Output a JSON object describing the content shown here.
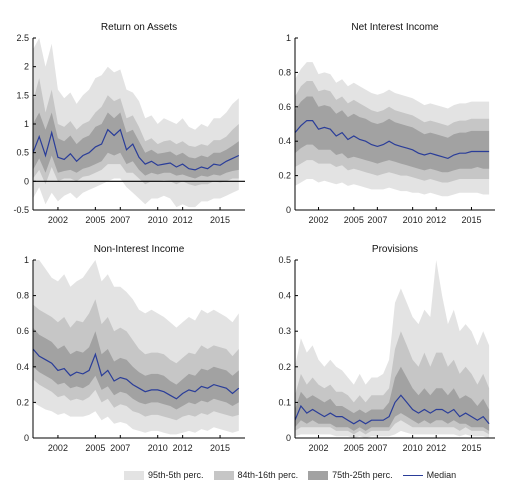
{
  "chart_data": [
    {
      "type": "area",
      "title": "Return on Assets",
      "ylim": [
        -0.5,
        2.5
      ],
      "yticks": [
        "-0.5",
        "0",
        "0.5",
        "1",
        "1.5",
        "2",
        "2.5"
      ],
      "xlim": [
        2000,
        2017
      ],
      "xticks": [
        "2002",
        "2005",
        "2007",
        "2010",
        "2012",
        "2015"
      ],
      "zero_line": true,
      "x": [
        2000.0,
        2000.5,
        2001.0,
        2001.5,
        2002.0,
        2002.5,
        2003.0,
        2003.5,
        2004.0,
        2004.5,
        2005.0,
        2005.5,
        2006.0,
        2006.5,
        2007.0,
        2007.5,
        2008.0,
        2008.5,
        2009.0,
        2009.5,
        2010.0,
        2010.5,
        2011.0,
        2011.5,
        2012.0,
        2012.5,
        2013.0,
        2013.5,
        2014.0,
        2014.5,
        2015.0,
        2015.5,
        2016.0,
        2016.5
      ],
      "median": [
        0.5,
        0.78,
        0.45,
        0.85,
        0.42,
        0.38,
        0.48,
        0.35,
        0.45,
        0.5,
        0.6,
        0.65,
        0.9,
        0.8,
        0.9,
        0.55,
        0.65,
        0.42,
        0.3,
        0.35,
        0.28,
        0.3,
        0.32,
        0.25,
        0.3,
        0.22,
        0.2,
        0.25,
        0.22,
        0.3,
        0.28,
        0.35,
        0.4,
        0.45
      ],
      "p25": [
        0.2,
        0.4,
        0.15,
        0.45,
        0.15,
        0.18,
        0.2,
        0.15,
        0.22,
        0.25,
        0.3,
        0.35,
        0.5,
        0.45,
        0.5,
        0.3,
        0.35,
        0.2,
        0.1,
        0.15,
        0.12,
        0.15,
        0.15,
        0.1,
        0.12,
        0.08,
        0.05,
        0.1,
        0.08,
        0.12,
        0.1,
        0.15,
        0.18,
        0.2
      ],
      "p75": [
        1.0,
        1.2,
        0.9,
        1.2,
        0.75,
        0.7,
        0.8,
        0.65,
        0.75,
        0.8,
        0.95,
        1.0,
        1.2,
        1.1,
        1.2,
        0.85,
        0.9,
        0.7,
        0.5,
        0.55,
        0.48,
        0.5,
        0.52,
        0.45,
        0.5,
        0.42,
        0.4,
        0.45,
        0.42,
        0.5,
        0.5,
        0.55,
        0.62,
        0.7
      ],
      "p16": [
        0.05,
        0.2,
        -0.05,
        0.25,
        0.0,
        0.05,
        0.05,
        0.0,
        0.08,
        0.1,
        0.15,
        0.2,
        0.3,
        0.3,
        0.3,
        0.15,
        0.15,
        0.05,
        -0.05,
        0.0,
        0.0,
        0.02,
        0.0,
        -0.05,
        0.0,
        -0.05,
        -0.08,
        -0.05,
        -0.05,
        0.0,
        -0.02,
        0.0,
        0.05,
        0.05
      ],
      "p84": [
        1.4,
        1.8,
        1.2,
        1.6,
        1.0,
        0.95,
        1.05,
        0.9,
        1.0,
        1.05,
        1.2,
        1.3,
        1.5,
        1.4,
        1.45,
        1.1,
        1.15,
        0.95,
        0.7,
        0.75,
        0.65,
        0.7,
        0.72,
        0.65,
        0.7,
        0.62,
        0.6,
        0.65,
        0.62,
        0.72,
        0.72,
        0.78,
        0.9,
        1.0
      ],
      "p5": [
        -0.3,
        -0.1,
        -0.4,
        -0.2,
        -0.35,
        -0.25,
        -0.2,
        -0.3,
        -0.2,
        -0.15,
        -0.1,
        -0.05,
        0.0,
        0.05,
        0.05,
        -0.1,
        -0.2,
        -0.3,
        -0.4,
        -0.3,
        -0.3,
        -0.25,
        -0.3,
        -0.45,
        -0.4,
        -0.45,
        -0.45,
        -0.35,
        -0.35,
        -0.3,
        -0.3,
        -0.25,
        -0.2,
        -0.15
      ],
      "p95": [
        2.3,
        2.5,
        2.0,
        2.4,
        1.6,
        1.45,
        1.55,
        1.35,
        1.5,
        1.6,
        1.8,
        1.85,
        2.0,
        1.9,
        1.95,
        1.6,
        1.55,
        1.4,
        1.1,
        1.15,
        1.0,
        1.1,
        1.05,
        1.0,
        1.1,
        0.95,
        0.9,
        1.0,
        0.95,
        1.1,
        1.1,
        1.2,
        1.35,
        1.45
      ]
    },
    {
      "type": "area",
      "title": "Net Interest Income",
      "ylim": [
        0,
        1
      ],
      "yticks": [
        "0",
        "0.2",
        "0.4",
        "0.6",
        "0.8",
        "1"
      ],
      "xlim": [
        2000,
        2017
      ],
      "xticks": [
        "2002",
        "2005",
        "2007",
        "2010",
        "2012",
        "2015"
      ],
      "zero_line": false,
      "x": [
        2000.0,
        2000.5,
        2001.0,
        2001.5,
        2002.0,
        2002.5,
        2003.0,
        2003.5,
        2004.0,
        2004.5,
        2005.0,
        2005.5,
        2006.0,
        2006.5,
        2007.0,
        2007.5,
        2008.0,
        2008.5,
        2009.0,
        2009.5,
        2010.0,
        2010.5,
        2011.0,
        2011.5,
        2012.0,
        2012.5,
        2013.0,
        2013.5,
        2014.0,
        2014.5,
        2015.0,
        2015.5,
        2016.0,
        2016.5
      ],
      "median": [
        0.45,
        0.49,
        0.52,
        0.52,
        0.47,
        0.48,
        0.47,
        0.43,
        0.45,
        0.41,
        0.43,
        0.41,
        0.4,
        0.38,
        0.37,
        0.38,
        0.4,
        0.38,
        0.37,
        0.36,
        0.35,
        0.33,
        0.32,
        0.33,
        0.32,
        0.31,
        0.3,
        0.32,
        0.33,
        0.33,
        0.34,
        0.34,
        0.34,
        0.34
      ],
      "p25": [
        0.33,
        0.36,
        0.38,
        0.38,
        0.35,
        0.35,
        0.35,
        0.32,
        0.33,
        0.3,
        0.31,
        0.3,
        0.29,
        0.28,
        0.27,
        0.28,
        0.29,
        0.28,
        0.27,
        0.26,
        0.25,
        0.24,
        0.23,
        0.24,
        0.23,
        0.22,
        0.22,
        0.23,
        0.24,
        0.24,
        0.24,
        0.25,
        0.24,
        0.24
      ],
      "p75": [
        0.58,
        0.63,
        0.66,
        0.66,
        0.6,
        0.61,
        0.6,
        0.56,
        0.58,
        0.54,
        0.56,
        0.54,
        0.53,
        0.51,
        0.5,
        0.51,
        0.53,
        0.51,
        0.5,
        0.49,
        0.48,
        0.46,
        0.44,
        0.45,
        0.44,
        0.43,
        0.42,
        0.44,
        0.45,
        0.45,
        0.46,
        0.46,
        0.46,
        0.46
      ],
      "p16": [
        0.25,
        0.27,
        0.29,
        0.29,
        0.27,
        0.27,
        0.27,
        0.25,
        0.26,
        0.23,
        0.24,
        0.23,
        0.22,
        0.21,
        0.2,
        0.21,
        0.22,
        0.21,
        0.2,
        0.2,
        0.19,
        0.18,
        0.17,
        0.18,
        0.17,
        0.16,
        0.16,
        0.17,
        0.18,
        0.18,
        0.18,
        0.18,
        0.18,
        0.18
      ],
      "p84": [
        0.66,
        0.72,
        0.75,
        0.75,
        0.69,
        0.7,
        0.69,
        0.64,
        0.66,
        0.62,
        0.64,
        0.62,
        0.6,
        0.58,
        0.57,
        0.58,
        0.6,
        0.58,
        0.57,
        0.56,
        0.55,
        0.53,
        0.51,
        0.52,
        0.51,
        0.5,
        0.49,
        0.51,
        0.52,
        0.52,
        0.53,
        0.53,
        0.53,
        0.53
      ],
      "p5": [
        0.14,
        0.16,
        0.18,
        0.18,
        0.16,
        0.17,
        0.16,
        0.15,
        0.16,
        0.14,
        0.15,
        0.14,
        0.13,
        0.12,
        0.12,
        0.12,
        0.13,
        0.12,
        0.11,
        0.11,
        0.1,
        0.1,
        0.09,
        0.1,
        0.09,
        0.08,
        0.08,
        0.09,
        0.1,
        0.1,
        0.1,
        0.1,
        0.09,
        0.09
      ],
      "p95": [
        0.76,
        0.82,
        0.86,
        0.86,
        0.79,
        0.8,
        0.79,
        0.74,
        0.76,
        0.72,
        0.74,
        0.72,
        0.7,
        0.68,
        0.67,
        0.68,
        0.7,
        0.68,
        0.67,
        0.66,
        0.65,
        0.63,
        0.61,
        0.62,
        0.61,
        0.6,
        0.59,
        0.61,
        0.62,
        0.62,
        0.63,
        0.63,
        0.63,
        0.63
      ]
    },
    {
      "type": "area",
      "title": "Non-Interest Income",
      "ylim": [
        0,
        1
      ],
      "yticks": [
        "0",
        "0.2",
        "0.4",
        "0.6",
        "0.8",
        "1"
      ],
      "xlim": [
        2000,
        2017
      ],
      "xticks": [
        "2002",
        "2005",
        "2007",
        "2010",
        "2012",
        "2015"
      ],
      "zero_line": false,
      "x": [
        2000.0,
        2000.5,
        2001.0,
        2001.5,
        2002.0,
        2002.5,
        2003.0,
        2003.5,
        2004.0,
        2004.5,
        2005.0,
        2005.5,
        2006.0,
        2006.5,
        2007.0,
        2007.5,
        2008.0,
        2008.5,
        2009.0,
        2009.5,
        2010.0,
        2010.5,
        2011.0,
        2011.5,
        2012.0,
        2012.5,
        2013.0,
        2013.5,
        2014.0,
        2014.5,
        2015.0,
        2015.5,
        2016.0,
        2016.5
      ],
      "median": [
        0.5,
        0.46,
        0.44,
        0.42,
        0.38,
        0.39,
        0.35,
        0.37,
        0.36,
        0.38,
        0.47,
        0.35,
        0.38,
        0.32,
        0.34,
        0.33,
        0.3,
        0.28,
        0.26,
        0.27,
        0.27,
        0.26,
        0.24,
        0.22,
        0.25,
        0.27,
        0.26,
        0.29,
        0.28,
        0.3,
        0.29,
        0.28,
        0.25,
        0.28
      ],
      "p25": [
        0.4,
        0.37,
        0.35,
        0.33,
        0.3,
        0.31,
        0.28,
        0.29,
        0.28,
        0.3,
        0.35,
        0.27,
        0.29,
        0.24,
        0.26,
        0.25,
        0.22,
        0.2,
        0.19,
        0.2,
        0.2,
        0.19,
        0.18,
        0.16,
        0.18,
        0.2,
        0.19,
        0.21,
        0.2,
        0.22,
        0.21,
        0.2,
        0.18,
        0.2
      ],
      "p75": [
        0.62,
        0.58,
        0.56,
        0.54,
        0.5,
        0.52,
        0.47,
        0.49,
        0.48,
        0.51,
        0.6,
        0.47,
        0.5,
        0.43,
        0.45,
        0.44,
        0.4,
        0.37,
        0.35,
        0.36,
        0.36,
        0.35,
        0.32,
        0.3,
        0.33,
        0.36,
        0.35,
        0.39,
        0.38,
        0.4,
        0.39,
        0.38,
        0.35,
        0.38
      ],
      "p16": [
        0.33,
        0.3,
        0.28,
        0.26,
        0.23,
        0.24,
        0.21,
        0.22,
        0.21,
        0.23,
        0.27,
        0.2,
        0.22,
        0.17,
        0.19,
        0.18,
        0.15,
        0.14,
        0.12,
        0.13,
        0.13,
        0.12,
        0.11,
        0.1,
        0.12,
        0.13,
        0.12,
        0.14,
        0.13,
        0.15,
        0.14,
        0.13,
        0.12,
        0.13
      ],
      "p84": [
        0.75,
        0.72,
        0.7,
        0.68,
        0.65,
        0.68,
        0.62,
        0.66,
        0.65,
        0.7,
        0.78,
        0.64,
        0.68,
        0.6,
        0.62,
        0.6,
        0.55,
        0.5,
        0.47,
        0.48,
        0.48,
        0.47,
        0.44,
        0.42,
        0.45,
        0.48,
        0.47,
        0.52,
        0.5,
        0.52,
        0.51,
        0.5,
        0.46,
        0.5
      ],
      "p5": [
        0.2,
        0.18,
        0.16,
        0.15,
        0.13,
        0.14,
        0.12,
        0.12,
        0.12,
        0.13,
        0.15,
        0.1,
        0.12,
        0.08,
        0.09,
        0.08,
        0.05,
        0.04,
        0.03,
        0.04,
        0.04,
        0.03,
        0.02,
        0.02,
        0.03,
        0.04,
        0.03,
        0.05,
        0.04,
        0.06,
        0.05,
        0.04,
        0.03,
        0.04
      ],
      "p95": [
        1.0,
        1.0,
        0.95,
        0.9,
        0.88,
        0.92,
        0.85,
        0.88,
        0.9,
        0.95,
        1.0,
        0.88,
        0.92,
        0.85,
        0.85,
        0.82,
        0.78,
        0.72,
        0.7,
        0.72,
        0.7,
        0.68,
        0.65,
        0.62,
        0.65,
        0.68,
        0.66,
        0.72,
        0.7,
        0.72,
        0.7,
        0.68,
        0.65,
        0.7
      ]
    },
    {
      "type": "area",
      "title": "Provisions",
      "ylim": [
        0,
        0.5
      ],
      "yticks": [
        "0",
        "0.1",
        "0.2",
        "0.3",
        "0.4",
        "0.5"
      ],
      "xlim": [
        2000,
        2017
      ],
      "xticks": [
        "2002",
        "2005",
        "2007",
        "2010",
        "2012",
        "2015"
      ],
      "zero_line": false,
      "x": [
        2000.0,
        2000.5,
        2001.0,
        2001.5,
        2002.0,
        2002.5,
        2003.0,
        2003.5,
        2004.0,
        2004.5,
        2005.0,
        2005.5,
        2006.0,
        2006.5,
        2007.0,
        2007.5,
        2008.0,
        2008.5,
        2009.0,
        2009.5,
        2010.0,
        2010.5,
        2011.0,
        2011.5,
        2012.0,
        2012.5,
        2013.0,
        2013.5,
        2014.0,
        2014.5,
        2015.0,
        2015.5,
        2016.0,
        2016.5
      ],
      "median": [
        0.05,
        0.09,
        0.07,
        0.08,
        0.07,
        0.06,
        0.07,
        0.06,
        0.06,
        0.05,
        0.04,
        0.05,
        0.04,
        0.05,
        0.05,
        0.05,
        0.06,
        0.1,
        0.12,
        0.1,
        0.08,
        0.07,
        0.08,
        0.07,
        0.08,
        0.08,
        0.07,
        0.08,
        0.06,
        0.07,
        0.06,
        0.05,
        0.06,
        0.04
      ],
      "p25": [
        0.03,
        0.05,
        0.04,
        0.05,
        0.04,
        0.04,
        0.04,
        0.03,
        0.03,
        0.03,
        0.02,
        0.03,
        0.02,
        0.03,
        0.03,
        0.03,
        0.03,
        0.06,
        0.07,
        0.06,
        0.05,
        0.04,
        0.05,
        0.04,
        0.05,
        0.05,
        0.04,
        0.05,
        0.04,
        0.04,
        0.03,
        0.03,
        0.03,
        0.02
      ],
      "p75": [
        0.08,
        0.13,
        0.11,
        0.12,
        0.11,
        0.1,
        0.11,
        0.09,
        0.09,
        0.08,
        0.07,
        0.08,
        0.07,
        0.08,
        0.08,
        0.08,
        0.1,
        0.17,
        0.2,
        0.17,
        0.14,
        0.12,
        0.14,
        0.12,
        0.14,
        0.14,
        0.12,
        0.14,
        0.11,
        0.12,
        0.11,
        0.09,
        0.11,
        0.08
      ],
      "p16": [
        0.02,
        0.03,
        0.03,
        0.03,
        0.03,
        0.03,
        0.03,
        0.02,
        0.02,
        0.02,
        0.01,
        0.02,
        0.01,
        0.02,
        0.02,
        0.02,
        0.02,
        0.04,
        0.05,
        0.04,
        0.03,
        0.03,
        0.03,
        0.03,
        0.03,
        0.03,
        0.03,
        0.03,
        0.02,
        0.03,
        0.02,
        0.02,
        0.02,
        0.01
      ],
      "p84": [
        0.12,
        0.18,
        0.15,
        0.17,
        0.15,
        0.14,
        0.15,
        0.13,
        0.13,
        0.12,
        0.1,
        0.12,
        0.1,
        0.12,
        0.12,
        0.12,
        0.14,
        0.25,
        0.3,
        0.26,
        0.22,
        0.2,
        0.24,
        0.2,
        0.24,
        0.24,
        0.2,
        0.22,
        0.18,
        0.2,
        0.18,
        0.15,
        0.18,
        0.14
      ],
      "p5": [
        0.005,
        0.01,
        0.01,
        0.01,
        0.01,
        0.01,
        0.01,
        0.005,
        0.005,
        0.005,
        0.0,
        0.005,
        0.0,
        0.005,
        0.005,
        0.005,
        0.005,
        0.01,
        0.02,
        0.015,
        0.01,
        0.01,
        0.01,
        0.01,
        0.01,
        0.01,
        0.01,
        0.01,
        0.005,
        0.01,
        0.005,
        0.005,
        0.005,
        0.0
      ],
      "p95": [
        0.2,
        0.28,
        0.24,
        0.26,
        0.22,
        0.2,
        0.22,
        0.2,
        0.19,
        0.17,
        0.15,
        0.18,
        0.15,
        0.17,
        0.17,
        0.18,
        0.22,
        0.38,
        0.42,
        0.38,
        0.34,
        0.32,
        0.36,
        0.34,
        0.5,
        0.4,
        0.32,
        0.36,
        0.3,
        0.32,
        0.3,
        0.26,
        0.3,
        0.26
      ]
    }
  ],
  "legend": [
    {
      "label": "95th-5th perc.",
      "kind": "band",
      "color": "#e3e3e3"
    },
    {
      "label": "84th-16th perc.",
      "kind": "band",
      "color": "#c6c6c6"
    },
    {
      "label": "75th-25th perc.",
      "kind": "band",
      "color": "#a2a2a2"
    },
    {
      "label": "Median",
      "kind": "line",
      "color": "#2a3d99"
    }
  ],
  "colors": {
    "band95": "#e3e3e3",
    "band84": "#c6c6c6",
    "band75": "#a2a2a2",
    "median": "#2a3d99",
    "axis": "#000000"
  }
}
